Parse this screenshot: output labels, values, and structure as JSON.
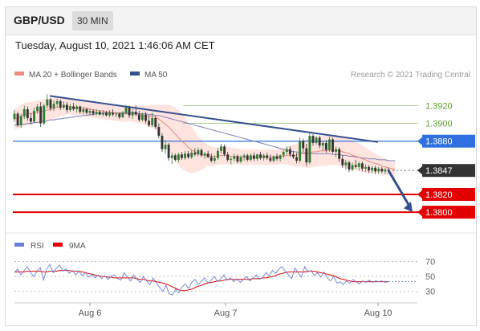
{
  "header": {
    "symbol": "GBP/USD",
    "timeframe": "30 MIN"
  },
  "datetime": "Tuesday, August 10, 2021 1:46:06 AM CET",
  "legend": {
    "ma20_label": "MA 20 + Bollinger Bands",
    "ma50_label": "MA 50",
    "credit": "Research © 2021 Trading Central"
  },
  "rsi_legend": {
    "rsi_label": "RSI",
    "ma_label": "9MA"
  },
  "colors": {
    "up": "#2e7d32",
    "down": "#333333",
    "ma20": "#ef8a80",
    "bands": "#ffd9d4",
    "ma50": "#7b7fb8",
    "trendline": "#35508f",
    "res_green": "#8dc26e",
    "blue_level": "#2f6fe0",
    "support": "#e30000",
    "rsi": "#6b7fd6",
    "rsi_ma": "#e30000"
  },
  "chart_data": {
    "type": "candlestick",
    "x_ticks": [
      "Aug 6",
      "Aug 7",
      "Aug 10"
    ],
    "ylim": [
      1.3782,
      1.3944
    ],
    "levels": [
      {
        "value": 1.392,
        "label": "1.3920",
        "kind": "resistance-minor"
      },
      {
        "value": 1.39,
        "label": "1.3900",
        "kind": "resistance-minor"
      },
      {
        "value": 1.388,
        "label": "1.3880",
        "kind": "pivot"
      },
      {
        "value": 1.3847,
        "label": "1.3847",
        "kind": "last-price"
      },
      {
        "value": 1.382,
        "label": "1.3820",
        "kind": "support"
      },
      {
        "value": 1.38,
        "label": "1.3800",
        "kind": "support"
      }
    ],
    "trendline": {
      "start": 1.3931,
      "end": 1.3879
    },
    "forecast_arrow": {
      "from": 1.3847,
      "to": 1.38
    },
    "candles": [
      [
        1.3905,
        1.3915,
        1.3902,
        1.3911
      ],
      [
        1.3911,
        1.3913,
        1.3896,
        1.3898
      ],
      [
        1.3898,
        1.3911,
        1.3895,
        1.3908
      ],
      [
        1.3908,
        1.392,
        1.3905,
        1.3916
      ],
      [
        1.3916,
        1.3919,
        1.3903,
        1.3906
      ],
      [
        1.3906,
        1.3912,
        1.3899,
        1.3902
      ],
      [
        1.3902,
        1.3918,
        1.3901,
        1.3914
      ],
      [
        1.3914,
        1.3922,
        1.3911,
        1.3919
      ],
      [
        1.3919,
        1.3924,
        1.3896,
        1.39
      ],
      [
        1.39,
        1.3922,
        1.3898,
        1.392
      ],
      [
        1.392,
        1.3933,
        1.3917,
        1.3927
      ],
      [
        1.3927,
        1.3929,
        1.3914,
        1.3917
      ],
      [
        1.3917,
        1.3926,
        1.3914,
        1.3922
      ],
      [
        1.3922,
        1.3928,
        1.3918,
        1.3925
      ],
      [
        1.3925,
        1.3927,
        1.3915,
        1.3918
      ],
      [
        1.3918,
        1.3925,
        1.3916,
        1.3921
      ],
      [
        1.3921,
        1.3924,
        1.3912,
        1.3915
      ],
      [
        1.3915,
        1.3922,
        1.3913,
        1.3919
      ],
      [
        1.3919,
        1.3923,
        1.3914,
        1.3916
      ],
      [
        1.3916,
        1.3921,
        1.3912,
        1.3919
      ],
      [
        1.3919,
        1.392,
        1.3911,
        1.3913
      ],
      [
        1.3913,
        1.3919,
        1.391,
        1.3916
      ],
      [
        1.3916,
        1.3918,
        1.391,
        1.3912
      ],
      [
        1.3912,
        1.3917,
        1.3909,
        1.3914
      ],
      [
        1.3914,
        1.3916,
        1.3909,
        1.3911
      ],
      [
        1.3911,
        1.3916,
        1.3909,
        1.3913
      ],
      [
        1.3913,
        1.3915,
        1.3909,
        1.391
      ],
      [
        1.391,
        1.3915,
        1.3908,
        1.3912
      ],
      [
        1.3912,
        1.3914,
        1.3908,
        1.3909
      ],
      [
        1.3909,
        1.3915,
        1.3907,
        1.3912
      ],
      [
        1.3912,
        1.3916,
        1.3908,
        1.391
      ],
      [
        1.391,
        1.3913,
        1.3907,
        1.3911
      ],
      [
        1.3911,
        1.3912,
        1.3905,
        1.3907
      ],
      [
        1.3907,
        1.3914,
        1.3906,
        1.3912
      ],
      [
        1.3912,
        1.3921,
        1.391,
        1.3918
      ],
      [
        1.3918,
        1.392,
        1.3906,
        1.3909
      ],
      [
        1.3909,
        1.3916,
        1.3905,
        1.3913
      ],
      [
        1.3913,
        1.392,
        1.3908,
        1.391
      ],
      [
        1.391,
        1.3914,
        1.3902,
        1.3904
      ],
      [
        1.3904,
        1.3912,
        1.3902,
        1.391
      ],
      [
        1.391,
        1.3913,
        1.39,
        1.3903
      ],
      [
        1.3903,
        1.3909,
        1.3896,
        1.3898
      ],
      [
        1.3898,
        1.3912,
        1.3896,
        1.3906
      ],
      [
        1.3906,
        1.3908,
        1.3894,
        1.3896
      ],
      [
        1.3896,
        1.39,
        1.3883,
        1.3886
      ],
      [
        1.3886,
        1.3889,
        1.3868,
        1.3871
      ],
      [
        1.3871,
        1.3881,
        1.3866,
        1.3876
      ],
      [
        1.3876,
        1.3878,
        1.3858,
        1.3861
      ],
      [
        1.3861,
        1.3867,
        1.3854,
        1.3864
      ],
      [
        1.3864,
        1.3866,
        1.3857,
        1.3859
      ],
      [
        1.3859,
        1.3867,
        1.3856,
        1.3865
      ],
      [
        1.3865,
        1.3868,
        1.3859,
        1.3861
      ],
      [
        1.3861,
        1.3869,
        1.3859,
        1.3866
      ],
      [
        1.3866,
        1.3869,
        1.386,
        1.3862
      ],
      [
        1.3862,
        1.387,
        1.386,
        1.3867
      ],
      [
        1.3867,
        1.3872,
        1.3863,
        1.3865
      ],
      [
        1.3865,
        1.3873,
        1.3863,
        1.387
      ],
      [
        1.387,
        1.3872,
        1.3862,
        1.3864
      ],
      [
        1.3864,
        1.3868,
        1.386,
        1.3866
      ],
      [
        1.3866,
        1.3869,
        1.3861,
        1.3862
      ],
      [
        1.3862,
        1.3866,
        1.3856,
        1.3858
      ],
      [
        1.3858,
        1.3864,
        1.3855,
        1.3861
      ],
      [
        1.3861,
        1.3872,
        1.3859,
        1.3869
      ],
      [
        1.3869,
        1.3877,
        1.3866,
        1.3874
      ],
      [
        1.3874,
        1.3876,
        1.3863,
        1.3865
      ],
      [
        1.3865,
        1.3868,
        1.3857,
        1.3859
      ],
      [
        1.3859,
        1.3863,
        1.3854,
        1.386
      ],
      [
        1.386,
        1.3866,
        1.3857,
        1.3863
      ],
      [
        1.3863,
        1.3865,
        1.3855,
        1.3857
      ],
      [
        1.3857,
        1.3864,
        1.3855,
        1.3862
      ],
      [
        1.3862,
        1.3866,
        1.3858,
        1.3864
      ],
      [
        1.3864,
        1.3866,
        1.3857,
        1.3859
      ],
      [
        1.3859,
        1.3866,
        1.3857,
        1.3864
      ],
      [
        1.3864,
        1.3867,
        1.3858,
        1.386
      ],
      [
        1.386,
        1.3866,
        1.3858,
        1.3865
      ],
      [
        1.3865,
        1.3868,
        1.3859,
        1.3861
      ],
      [
        1.3861,
        1.3866,
        1.3858,
        1.3864
      ],
      [
        1.3864,
        1.3867,
        1.3859,
        1.3861
      ],
      [
        1.3861,
        1.3865,
        1.3856,
        1.3858
      ],
      [
        1.3858,
        1.3864,
        1.3856,
        1.3863
      ],
      [
        1.3863,
        1.3866,
        1.3858,
        1.386
      ],
      [
        1.386,
        1.3865,
        1.3857,
        1.3864
      ],
      [
        1.3864,
        1.387,
        1.3861,
        1.3868
      ],
      [
        1.3868,
        1.3874,
        1.3865,
        1.3871
      ],
      [
        1.3871,
        1.3874,
        1.3862,
        1.3865
      ],
      [
        1.3865,
        1.3869,
        1.386,
        1.3862
      ],
      [
        1.3862,
        1.3867,
        1.3855,
        1.3858
      ],
      [
        1.3858,
        1.3884,
        1.3856,
        1.388
      ],
      [
        1.388,
        1.3883,
        1.3868,
        1.3872
      ],
      [
        1.3872,
        1.3877,
        1.3852,
        1.3856
      ],
      [
        1.3856,
        1.3889,
        1.3854,
        1.3886
      ],
      [
        1.3886,
        1.3888,
        1.3875,
        1.3878
      ],
      [
        1.3878,
        1.3886,
        1.3876,
        1.3884
      ],
      [
        1.3884,
        1.3886,
        1.3872,
        1.3875
      ],
      [
        1.3875,
        1.388,
        1.3869,
        1.3878
      ],
      [
        1.3878,
        1.3881,
        1.3867,
        1.387
      ],
      [
        1.387,
        1.3885,
        1.3868,
        1.3882
      ],
      [
        1.3882,
        1.3884,
        1.3866,
        1.3868
      ],
      [
        1.3868,
        1.3874,
        1.3862,
        1.3871
      ],
      [
        1.3871,
        1.3873,
        1.3857,
        1.386
      ],
      [
        1.386,
        1.3864,
        1.385,
        1.3853
      ],
      [
        1.3853,
        1.3859,
        1.3848,
        1.3856
      ],
      [
        1.3856,
        1.3858,
        1.3845,
        1.3848
      ],
      [
        1.3848,
        1.3856,
        1.3846,
        1.3853
      ],
      [
        1.3853,
        1.3859,
        1.3849,
        1.3851
      ],
      [
        1.3851,
        1.3857,
        1.3847,
        1.3855
      ],
      [
        1.3855,
        1.3857,
        1.3846,
        1.3849
      ],
      [
        1.3849,
        1.3854,
        1.3845,
        1.3851
      ],
      [
        1.3851,
        1.3853,
        1.3844,
        1.3847
      ],
      [
        1.3847,
        1.3852,
        1.3844,
        1.385
      ],
      [
        1.385,
        1.3852,
        1.3843,
        1.3846
      ],
      [
        1.3846,
        1.3851,
        1.3843,
        1.3849
      ],
      [
        1.3849,
        1.3851,
        1.3844,
        1.3846
      ],
      [
        1.3846,
        1.385,
        1.3843,
        1.3848
      ],
      [
        1.3848,
        1.385,
        1.3844,
        1.3847
      ]
    ],
    "ma20": [
      1.3905,
      1.3906,
      1.3908,
      1.391,
      1.3911,
      1.3911,
      1.3912,
      1.3913,
      1.3913,
      1.3914,
      1.3915,
      1.3916,
      1.3917,
      1.3918,
      1.3918,
      1.3919,
      1.3919,
      1.3919,
      1.3919,
      1.3918,
      1.3918,
      1.3917,
      1.3917,
      1.3916,
      1.3915,
      1.3915,
      1.3914,
      1.3914,
      1.3913,
      1.3913,
      1.3912,
      1.3912,
      1.3911,
      1.3911,
      1.3911,
      1.3911,
      1.3911,
      1.3911,
      1.391,
      1.391,
      1.3909,
      1.3908,
      1.3908,
      1.3907,
      1.3905,
      1.3902,
      1.3899,
      1.3896,
      1.3892,
      1.3888,
      1.3884,
      1.388,
      1.3877,
      1.3873,
      1.387,
      1.3868,
      1.3866,
      1.3865,
      1.3864,
      1.3864,
      1.3863,
      1.3863,
      1.3863,
      1.3864,
      1.3864,
      1.3864,
      1.3863,
      1.3863,
      1.3863,
      1.3862,
      1.3862,
      1.3862,
      1.3862,
      1.3862,
      1.3862,
      1.3862,
      1.3862,
      1.3862,
      1.3862,
      1.3862,
      1.3862,
      1.3863,
      1.3863,
      1.3864,
      1.3864,
      1.3864,
      1.3864,
      1.3866,
      1.3866,
      1.3866,
      1.3867,
      1.3868,
      1.3868,
      1.3869,
      1.3869,
      1.3869,
      1.387,
      1.387,
      1.387,
      1.3869,
      1.3868,
      1.3867,
      1.3866,
      1.3864,
      1.3863,
      1.3862,
      1.386,
      1.3859,
      1.3857,
      1.3856,
      1.3855,
      1.3854,
      1.3852,
      1.3851,
      1.385,
      1.3849,
      1.3848
    ],
    "bb_width": [
      0.0012,
      0.0012,
      0.0013,
      0.0013,
      0.0013,
      0.0013,
      0.0013,
      0.0013,
      0.0013,
      0.0013,
      0.0013,
      0.0012,
      0.0012,
      0.0011,
      0.001,
      0.001,
      0.0009,
      0.0009,
      0.0009,
      0.0009,
      0.0009,
      0.0009,
      0.0009,
      0.0009,
      0.0009,
      0.0009,
      0.0009,
      0.0009,
      0.0009,
      0.0009,
      0.0009,
      0.0009,
      0.0009,
      0.0009,
      0.0009,
      0.0009,
      0.0009,
      0.001,
      0.001,
      0.001,
      0.0011,
      0.0012,
      0.0013,
      0.0014,
      0.0016,
      0.0019,
      0.0022,
      0.0025,
      0.0028,
      0.003,
      0.0031,
      0.0031,
      0.003,
      0.0028,
      0.0026,
      0.0023,
      0.002,
      0.0017,
      0.0014,
      0.0012,
      0.0011,
      0.001,
      0.001,
      0.001,
      0.001,
      0.001,
      0.001,
      0.0009,
      0.0009,
      0.0009,
      0.0009,
      0.0009,
      0.0009,
      0.0009,
      0.0009,
      0.0009,
      0.0009,
      0.0009,
      0.0009,
      0.0009,
      0.0009,
      0.0009,
      0.0009,
      0.001,
      0.0011,
      0.0012,
      0.0013,
      0.0014,
      0.0015,
      0.0016,
      0.0017,
      0.0017,
      0.0017,
      0.0017,
      0.0017,
      0.0017,
      0.0017,
      0.0017,
      0.0017,
      0.0017,
      0.0017,
      0.0017,
      0.0017,
      0.0017,
      0.0016,
      0.0016,
      0.0015,
      0.0014,
      0.0013,
      0.0012,
      0.0011,
      0.001,
      0.001,
      0.0009,
      0.0009,
      0.0009,
      0.0009
    ],
    "ma50": [
      1.3898,
      1.3898,
      1.3899,
      1.3899,
      1.39,
      1.39,
      1.3901,
      1.3901,
      1.3902,
      1.3902,
      1.3903,
      1.3904,
      1.3904,
      1.3905,
      1.3905,
      1.3906,
      1.3906,
      1.3907,
      1.3907,
      1.3908,
      1.3908,
      1.3909,
      1.3909,
      1.391,
      1.391,
      1.3911,
      1.3911,
      1.3912,
      1.3912,
      1.3912,
      1.3912,
      1.3912,
      1.3912,
      1.3912,
      1.3912,
      1.3912,
      1.3912,
      1.3912,
      1.3911,
      1.3911,
      1.3911,
      1.391,
      1.391,
      1.3909,
      1.3909,
      1.3908,
      1.3907,
      1.3906,
      1.3905,
      1.3904,
      1.3903,
      1.3902,
      1.3901,
      1.39,
      1.3899,
      1.3898,
      1.3897,
      1.3896,
      1.3895,
      1.3894,
      1.3893,
      1.3892,
      1.3891,
      1.389,
      1.3889,
      1.3888,
      1.3887,
      1.3886,
      1.3885,
      1.3884,
      1.3883,
      1.3882,
      1.3881,
      1.388,
      1.3879,
      1.3878,
      1.3877,
      1.3876,
      1.3875,
      1.3874,
      1.3873,
      1.3872,
      1.3871,
      1.387,
      1.3869,
      1.3868,
      1.3868,
      1.3867,
      1.3867,
      1.3867,
      1.3866,
      1.3866,
      1.3866,
      1.3866,
      1.3866,
      1.3866,
      1.3866,
      1.3865,
      1.3865,
      1.3865,
      1.3864,
      1.3864,
      1.3863,
      1.3863,
      1.3862,
      1.3862,
      1.3861,
      1.3861,
      1.386,
      1.386,
      1.386,
      1.3859,
      1.3859,
      1.3859,
      1.3858,
      1.3858,
      1.3858
    ],
    "rsi": {
      "levels": [
        70,
        50,
        30
      ],
      "ylim": [
        20,
        78
      ],
      "rsi": [
        55,
        60,
        52,
        58,
        63,
        55,
        50,
        57,
        62,
        45,
        60,
        66,
        55,
        61,
        65,
        57,
        60,
        54,
        58,
        52,
        57,
        51,
        55,
        49,
        53,
        48,
        52,
        47,
        51,
        46,
        50,
        52,
        47,
        45,
        55,
        49,
        44,
        52,
        46,
        42,
        50,
        44,
        39,
        48,
        41,
        35,
        30,
        38,
        27,
        25,
        33,
        28,
        36,
        40,
        34,
        42,
        46,
        39,
        44,
        48,
        41,
        45,
        50,
        43,
        47,
        52,
        45,
        48,
        43,
        47,
        42,
        46,
        50,
        44,
        48,
        52,
        46,
        49,
        55,
        51,
        58,
        54,
        60,
        63,
        57,
        52,
        47,
        61,
        55,
        49,
        63,
        56,
        58,
        51,
        55,
        49,
        56,
        48,
        44,
        50,
        41,
        43,
        39,
        44,
        41,
        46,
        43,
        40,
        44,
        42,
        45,
        42,
        44,
        43,
        44,
        42,
        43
      ],
      "ma": [
        56,
        56,
        56,
        56,
        57,
        57,
        57,
        57,
        57,
        56,
        56,
        57,
        57,
        57,
        58,
        58,
        58,
        58,
        57,
        57,
        57,
        56,
        55,
        54,
        53,
        52,
        51,
        50,
        50,
        49,
        49,
        48,
        48,
        48,
        48,
        48,
        48,
        48,
        47,
        46,
        46,
        45,
        44,
        44,
        43,
        42,
        41,
        40,
        38,
        36,
        34,
        32,
        31,
        31,
        32,
        33,
        35,
        37,
        38,
        40,
        41,
        42,
        43,
        44,
        44,
        45,
        46,
        46,
        46,
        46,
        46,
        46,
        46,
        46,
        47,
        47,
        47,
        48,
        48,
        49,
        50,
        51,
        53,
        54,
        55,
        56,
        56,
        56,
        56,
        56,
        56,
        57,
        57,
        57,
        56,
        55,
        54,
        53,
        52,
        51,
        49,
        47,
        46,
        45,
        44,
        43,
        43,
        43,
        43,
        43,
        43,
        43,
        43,
        43,
        43,
        43,
        43
      ]
    }
  }
}
